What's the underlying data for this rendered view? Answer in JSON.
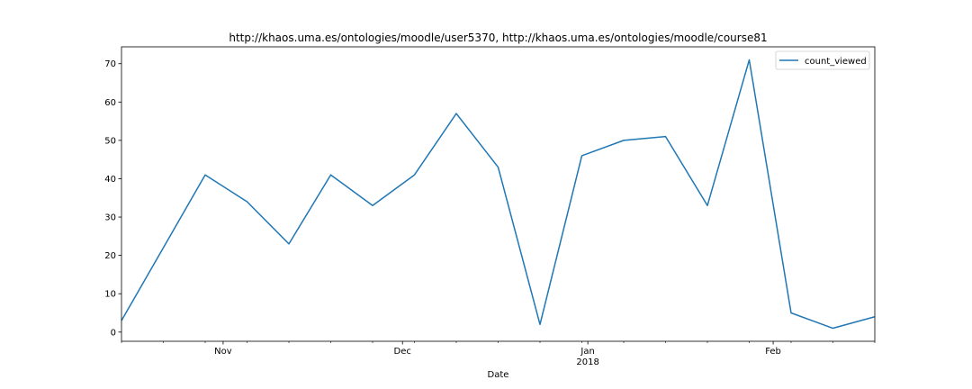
{
  "chart_data": {
    "type": "line",
    "title": "http://khaos.uma.es/ontologies/moodle/user5370, http://khaos.uma.es/ontologies/moodle/course81",
    "xlabel": "Date",
    "ylabel": "",
    "x_major_ticks": [
      {
        "date": "2017-11-01",
        "label": "Nov",
        "sublabel": ""
      },
      {
        "date": "2017-12-01",
        "label": "Dec",
        "sublabel": ""
      },
      {
        "date": "2018-01-01",
        "label": "Jan",
        "sublabel": "2018"
      },
      {
        "date": "2018-02-01",
        "label": "Feb",
        "sublabel": ""
      }
    ],
    "ylim": [
      -2.4,
      74.4
    ],
    "yticks": [
      0,
      10,
      20,
      30,
      40,
      50,
      60,
      70
    ],
    "grid": false,
    "legend_position": "upper right",
    "series": [
      {
        "name": "count_viewed",
        "color": "#1f77b4",
        "points": [
          {
            "x": "2017-10-15",
            "y": 3
          },
          {
            "x": "2017-10-22",
            "y": 22
          },
          {
            "x": "2017-10-29",
            "y": 41
          },
          {
            "x": "2017-11-05",
            "y": 34
          },
          {
            "x": "2017-11-12",
            "y": 23
          },
          {
            "x": "2017-11-19",
            "y": 41
          },
          {
            "x": "2017-11-26",
            "y": 33
          },
          {
            "x": "2017-12-03",
            "y": 41
          },
          {
            "x": "2017-12-10",
            "y": 57
          },
          {
            "x": "2017-12-17",
            "y": 43
          },
          {
            "x": "2017-12-24",
            "y": 2
          },
          {
            "x": "2017-12-31",
            "y": 46
          },
          {
            "x": "2018-01-07",
            "y": 50
          },
          {
            "x": "2018-01-14",
            "y": 51
          },
          {
            "x": "2018-01-21",
            "y": 33
          },
          {
            "x": "2018-01-28",
            "y": 71
          },
          {
            "x": "2018-02-04",
            "y": 5
          },
          {
            "x": "2018-02-11",
            "y": 1
          },
          {
            "x": "2018-02-18",
            "y": 4
          }
        ]
      }
    ]
  }
}
